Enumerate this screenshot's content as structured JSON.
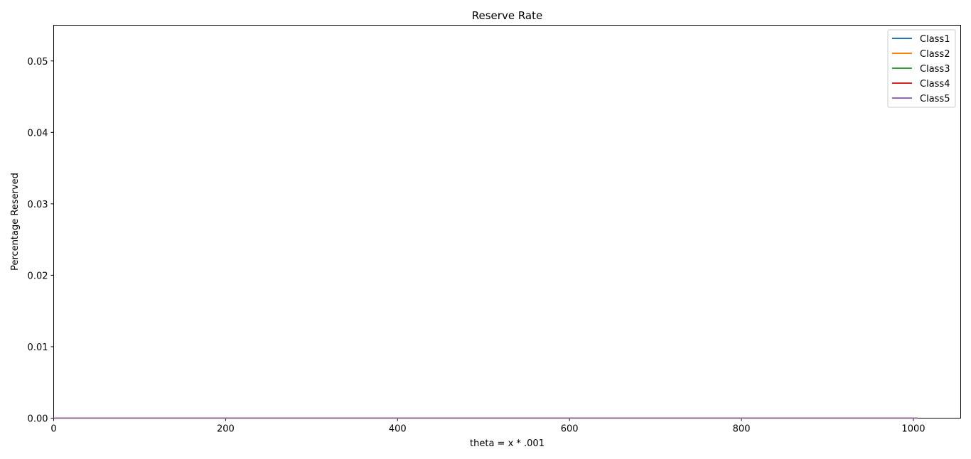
{
  "chart_data": {
    "type": "line",
    "title": "Reserve Rate",
    "xlabel": "theta = x * .001",
    "ylabel": "Percentage Reserved",
    "xlim": [
      0,
      1055
    ],
    "ylim": [
      0,
      0.055
    ],
    "xticks": [
      0,
      200,
      400,
      600,
      800,
      1000
    ],
    "yticks": [
      0.0,
      0.01,
      0.02,
      0.03,
      0.04,
      0.05
    ],
    "xtick_labels": [
      "0",
      "200",
      "400",
      "600",
      "800",
      "1000"
    ],
    "ytick_labels": [
      "0.00",
      "0.01",
      "0.02",
      "0.03",
      "0.04",
      "0.05"
    ],
    "grid": false,
    "legend_position": "top-right",
    "series": [
      {
        "name": "Class1",
        "color": "#1f77b4",
        "x": [
          0,
          1005
        ],
        "y": [
          0,
          0
        ]
      },
      {
        "name": "Class2",
        "color": "#ff7f0e",
        "x": [
          0,
          1005
        ],
        "y": [
          0,
          0
        ]
      },
      {
        "name": "Class3",
        "color": "#2ca02c",
        "x": [
          0,
          1005
        ],
        "y": [
          0,
          0
        ]
      },
      {
        "name": "Class4",
        "color": "#d62728",
        "x": [
          0,
          1005
        ],
        "y": [
          0,
          0
        ]
      },
      {
        "name": "Class5",
        "color": "#9467bd",
        "x": [
          0,
          1005
        ],
        "y": [
          0,
          0
        ]
      }
    ]
  }
}
